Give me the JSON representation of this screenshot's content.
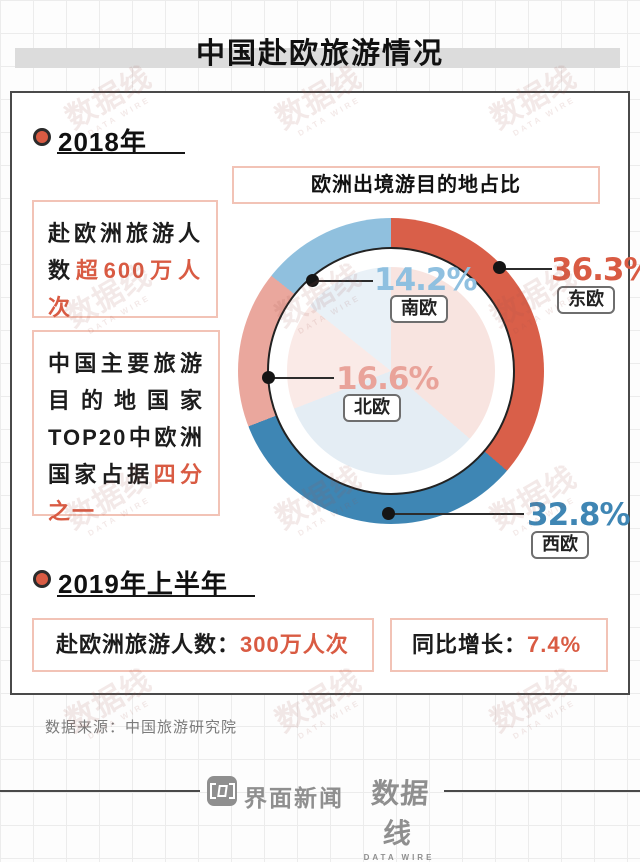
{
  "title": "中国赴欧旅游情况",
  "sections": {
    "y2018": {
      "label": "2018年"
    },
    "y2019": {
      "label": "2019年上半年"
    }
  },
  "chart_title": "欧洲出境游目的地占比",
  "chart_data": {
    "type": "donut",
    "title": "欧洲出境游目的地占比",
    "slices": [
      {
        "name": "东欧",
        "value": 36.3,
        "pct": "36.3%",
        "color": "#d95f49",
        "pale_color": "#f8e4e0",
        "label_color": "#d95b43"
      },
      {
        "name": "西欧",
        "value": 32.8,
        "pct": "32.8%",
        "color": "#3e86b4",
        "pale_color": "#e4edf4",
        "label_color": "#3f86b4"
      },
      {
        "name": "北欧",
        "value": 16.6,
        "pct": "16.6%",
        "color": "#eaa79d",
        "pale_color": "#faeae7",
        "label_color": "#e9a39a"
      },
      {
        "name": "南欧",
        "value": 14.2,
        "pct": "14.2%",
        "color": "#90c0de",
        "pale_color": "#e9f1f7",
        "label_color": "#8fc0e0"
      }
    ],
    "start_angle_deg": 0,
    "direction": "clockwise",
    "legend_position": "callouts"
  },
  "info_boxes": {
    "visitors": {
      "black": "赴欧洲旅游人数",
      "red": "超600万人次"
    },
    "top20": {
      "black": "中国主要旅游目的地国家TOP20中欧洲国家占据",
      "red": "四分之一"
    }
  },
  "stats_2019": {
    "visitors": {
      "label": "赴欧洲旅游人数：",
      "value": "300万人次"
    },
    "growth": {
      "label": "同比增长：",
      "value": "7.4%"
    }
  },
  "source": "数据来源：中国旅游研究院",
  "footer": {
    "brand1": "界面新闻",
    "separator": "×",
    "brand2": "数据线",
    "brand2_sub": "DATA WIRE"
  },
  "watermark": {
    "text": "数据线",
    "sub": "DATA WIRE"
  },
  "colors": {
    "accent_red": "#d95b43",
    "blue": "#3e86b4",
    "light_blue": "#90c0de",
    "salmon": "#eaa79d",
    "title_band": "#dcdcdc",
    "box_border": "#f2c3b6",
    "card_border": "#4a4a4a",
    "footer_gray": "#8f8f8f"
  }
}
